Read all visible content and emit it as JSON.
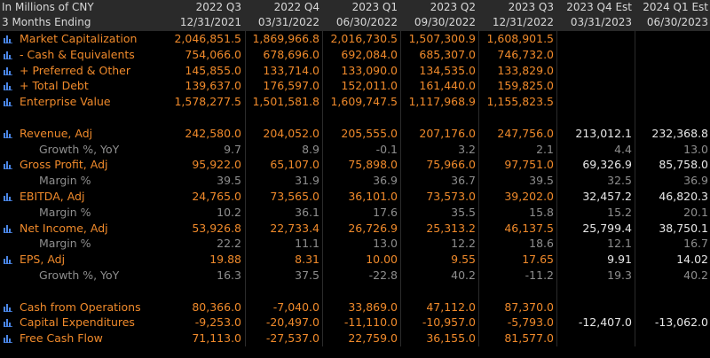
{
  "header": {
    "unit": "In Millions of CNY",
    "period": "3 Months Ending",
    "columns": [
      {
        "q": "2022 Q3",
        "date": "12/31/2021"
      },
      {
        "q": "2022 Q4",
        "date": "03/31/2022"
      },
      {
        "q": "2023 Q1",
        "date": "06/30/2022"
      },
      {
        "q": "2023 Q2",
        "date": "09/30/2022"
      },
      {
        "q": "2023 Q3",
        "date": "12/31/2022"
      },
      {
        "q": "2023 Q4 Est",
        "date": "03/31/2023"
      },
      {
        "q": "2024 Q1 Est",
        "date": "06/30/2023"
      }
    ]
  },
  "rows": [
    {
      "label": "Market Capitalization",
      "values": [
        "2,046,851.5",
        "1,869,966.8",
        "2,016,730.5",
        "1,507,300.9",
        "1,608,901.5",
        "",
        ""
      ]
    },
    {
      "label": "- Cash & Equivalents",
      "values": [
        "754,066.0",
        "678,696.0",
        "692,084.0",
        "685,307.0",
        "746,732.0",
        "",
        ""
      ]
    },
    {
      "label": "+ Preferred & Other",
      "values": [
        "145,855.0",
        "133,714.0",
        "133,090.0",
        "134,535.0",
        "133,829.0",
        "",
        ""
      ]
    },
    {
      "label": "+ Total Debt",
      "values": [
        "139,637.0",
        "176,597.0",
        "152,011.0",
        "161,440.0",
        "159,825.0",
        "",
        ""
      ]
    },
    {
      "label": "Enterprise Value",
      "values": [
        "1,578,277.5",
        "1,501,581.8",
        "1,609,747.5",
        "1,117,968.9",
        "1,155,823.5",
        "",
        ""
      ]
    },
    {
      "label": "Revenue, Adj",
      "values": [
        "242,580.0",
        "204,052.0",
        "205,555.0",
        "207,176.0",
        "247,756.0",
        "213,012.1",
        "232,368.8"
      ]
    },
    {
      "label": "Growth %, YoY",
      "values": [
        "9.7",
        "8.9",
        "-0.1",
        "3.2",
        "2.1",
        "4.4",
        "13.0"
      ]
    },
    {
      "label": "Gross Profit, Adj",
      "values": [
        "95,922.0",
        "65,107.0",
        "75,898.0",
        "75,966.0",
        "97,751.0",
        "69,326.9",
        "85,758.0"
      ]
    },
    {
      "label": "Margin %",
      "values": [
        "39.5",
        "31.9",
        "36.9",
        "36.7",
        "39.5",
        "32.5",
        "36.9"
      ]
    },
    {
      "label": "EBITDA, Adj",
      "values": [
        "24,765.0",
        "73,565.0",
        "36,101.0",
        "73,573.0",
        "39,202.0",
        "32,457.2",
        "46,820.3"
      ]
    },
    {
      "label": "Margin %",
      "values": [
        "10.2",
        "36.1",
        "17.6",
        "35.5",
        "15.8",
        "15.2",
        "20.1"
      ]
    },
    {
      "label": "Net Income, Adj",
      "values": [
        "53,926.8",
        "22,733.4",
        "26,726.9",
        "25,313.2",
        "46,137.5",
        "25,799.4",
        "38,750.1"
      ]
    },
    {
      "label": "Margin %",
      "values": [
        "22.2",
        "11.1",
        "13.0",
        "12.2",
        "18.6",
        "12.1",
        "16.7"
      ]
    },
    {
      "label": "EPS, Adj",
      "values": [
        "19.88",
        "8.31",
        "10.00",
        "9.55",
        "17.65",
        "9.91",
        "14.02"
      ]
    },
    {
      "label": "Growth %, YoY",
      "values": [
        "16.3",
        "37.5",
        "-22.8",
        "40.2",
        "-11.2",
        "19.3",
        "40.2"
      ]
    },
    {
      "label": "Cash from Operations",
      "values": [
        "80,366.0",
        "-7,040.0",
        "33,869.0",
        "47,112.0",
        "87,370.0",
        "",
        ""
      ]
    },
    {
      "label": "Capital Expenditures",
      "values": [
        "-9,253.0",
        "-20,497.0",
        "-11,110.0",
        "-10,957.0",
        "-5,793.0",
        "-12,407.0",
        "-13,062.0"
      ]
    },
    {
      "label": "Free Cash Flow",
      "values": [
        "71,113.0",
        "-27,537.0",
        "22,759.0",
        "36,155.0",
        "81,577.0",
        "",
        ""
      ]
    }
  ],
  "colors": {
    "accent": "#f08a2b",
    "sub": "#8e8e8e",
    "estimate": "#e8e8e8",
    "icon": "#4a86e8",
    "header_bg": "#2a2a2a"
  }
}
